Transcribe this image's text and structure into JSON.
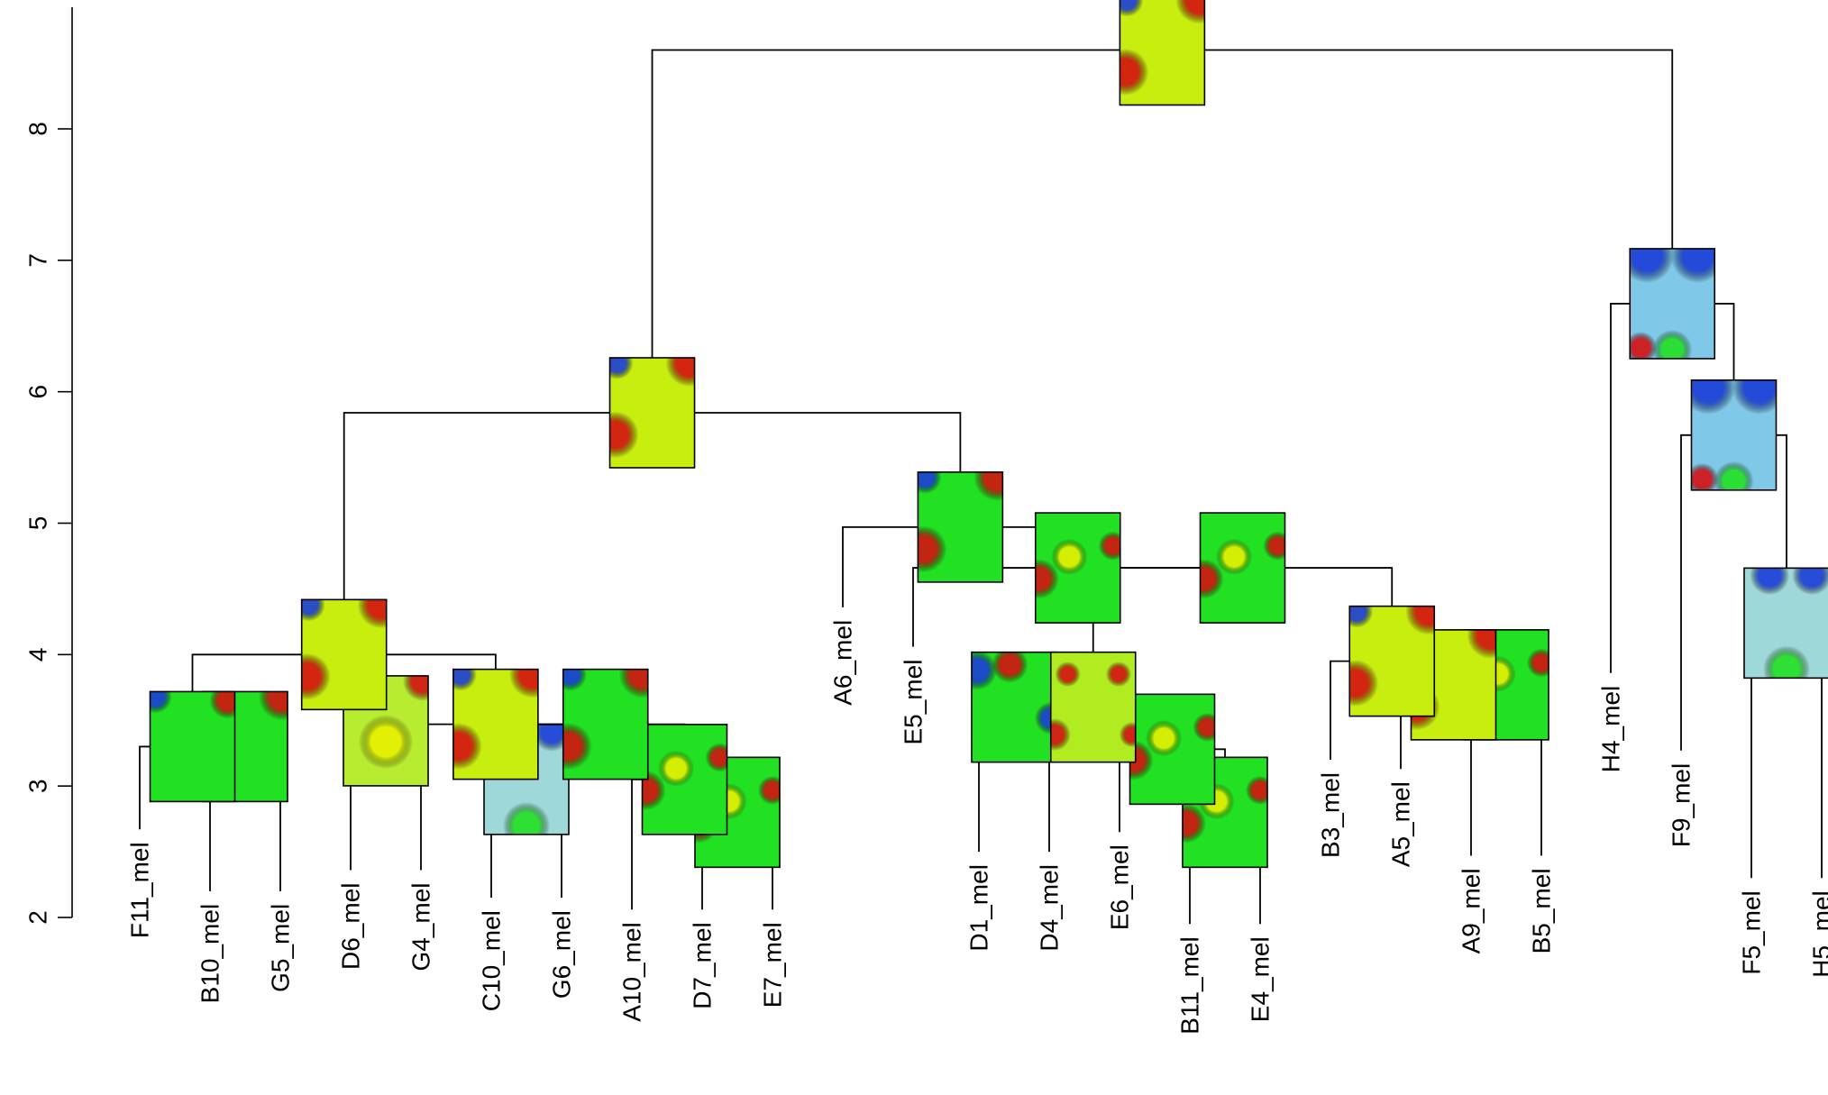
{
  "chart_data": {
    "type": "dendrogram",
    "title": "",
    "ylabel": "",
    "ylim": [
      2,
      8.6
    ],
    "y_ticks": [
      2,
      3,
      4,
      5,
      6,
      7,
      8
    ],
    "leaves": [
      "F11_mel",
      "B10_mel",
      "G5_mel",
      "D6_mel",
      "G4_mel",
      "C10_mel",
      "G6_mel",
      "A10_mel",
      "D7_mel",
      "E7_mel",
      "A6_mel",
      "E5_mel",
      "D1_mel",
      "D4_mel",
      "E6_mel",
      "B11_mel",
      "E4_mel",
      "B3_mel",
      "A5_mel",
      "A9_mel",
      "B5_mel",
      "H4_mel",
      "F9_mel",
      "F5_mel",
      "H5_mel"
    ],
    "leaf_heights": [
      2.67,
      2.2,
      2.2,
      2.36,
      2.36,
      2.15,
      2.15,
      2.06,
      2.06,
      2.06,
      4.36,
      4.06,
      2.5,
      2.5,
      2.65,
      1.95,
      1.95,
      3.2,
      3.13,
      2.47,
      2.47,
      3.86,
      3.27,
      2.3,
      2.3
    ],
    "merges": [
      {
        "id": "n1",
        "children": [
          "B10_mel",
          "G5_mel"
        ],
        "height": 3.3,
        "heatmap": "green-red-corner"
      },
      {
        "id": "n2",
        "children": [
          "F11_mel",
          "n1"
        ],
        "height": 3.3,
        "heatmap": "green-blue-corner"
      },
      {
        "id": "n3",
        "children": [
          "D6_mel",
          "G4_mel"
        ],
        "height": 3.42,
        "heatmap": "yellow-green"
      },
      {
        "id": "n4",
        "children": [
          "C10_mel",
          "G6_mel"
        ],
        "height": 3.05,
        "heatmap": "light-blue"
      },
      {
        "id": "n5",
        "children": [
          "D7_mel",
          "E7_mel"
        ],
        "height": 2.8,
        "heatmap": "green-red-edge"
      },
      {
        "id": "n6",
        "children": [
          "A10_mel",
          "n5"
        ],
        "height": 3.05,
        "heatmap": "green-red-edge"
      },
      {
        "id": "n7",
        "children": [
          "n4",
          "n6"
        ],
        "height": 3.47,
        "heatmap": "green-red-corner"
      },
      {
        "id": "n8",
        "children": [
          "n3",
          "n7"
        ],
        "height": 3.47,
        "heatmap": "yellow-red-corner"
      },
      {
        "id": "n9",
        "children": [
          "n2",
          "n8"
        ],
        "height": 4.0,
        "heatmap": "yellow-red-corner"
      },
      {
        "id": "n10",
        "children": [
          "D1_mel",
          "D4_mel"
        ],
        "height": 3.6,
        "heatmap": "green-blue-red"
      },
      {
        "id": "n11",
        "children": [
          "B11_mel",
          "E4_mel"
        ],
        "height": 2.8,
        "heatmap": "green-red-edge"
      },
      {
        "id": "n12",
        "children": [
          "E6_mel",
          "n11"
        ],
        "height": 3.28,
        "heatmap": "green-red-edge"
      },
      {
        "id": "n13",
        "children": [
          "n10",
          "n12"
        ],
        "height": 3.6,
        "heatmap": "yellow-red-spots"
      },
      {
        "id": "n14",
        "children": [
          "A9_mel",
          "B5_mel"
        ],
        "height": 3.77,
        "heatmap": "green-red-edge"
      },
      {
        "id": "n15",
        "children": [
          "A5_mel",
          "n14"
        ],
        "height": 3.77,
        "heatmap": "yellow-red-corner"
      },
      {
        "id": "n16",
        "children": [
          "B3_mel",
          "n15"
        ],
        "height": 3.95,
        "heatmap": "yellow-red-corner"
      },
      {
        "id": "n17",
        "children": [
          "n13",
          "n16"
        ],
        "height": 4.66,
        "heatmap": "green-red-edge"
      },
      {
        "id": "n18",
        "children": [
          "E5_mel",
          "n17"
        ],
        "height": 4.66,
        "heatmap": "green-red-edge"
      },
      {
        "id": "n19",
        "children": [
          "A6_mel",
          "n18"
        ],
        "height": 4.97,
        "heatmap": "green-red-corner"
      },
      {
        "id": "n20",
        "children": [
          "n9",
          "n19"
        ],
        "height": 5.84,
        "heatmap": "yellow-red-corner"
      },
      {
        "id": "n21",
        "children": [
          "F5_mel",
          "H5_mel"
        ],
        "height": 4.24,
        "heatmap": "blue-green"
      },
      {
        "id": "n22",
        "children": [
          "F9_mel",
          "n21"
        ],
        "height": 5.67,
        "heatmap": "blue-red-bottom"
      },
      {
        "id": "n23",
        "children": [
          "H4_mel",
          "n22"
        ],
        "height": 6.67,
        "heatmap": "blue-red-bottom"
      },
      {
        "id": "n24",
        "children": [
          "n20",
          "n23"
        ],
        "height": 8.6,
        "heatmap": "yellow-red-corner"
      }
    ]
  },
  "colors": {
    "line": "#000000",
    "heat_blue": "#1a3cd8",
    "heat_lightblue": "#9fd8d8",
    "heat_green": "#22e022",
    "heat_yellow": "#e8f000",
    "heat_red": "#d41010"
  }
}
